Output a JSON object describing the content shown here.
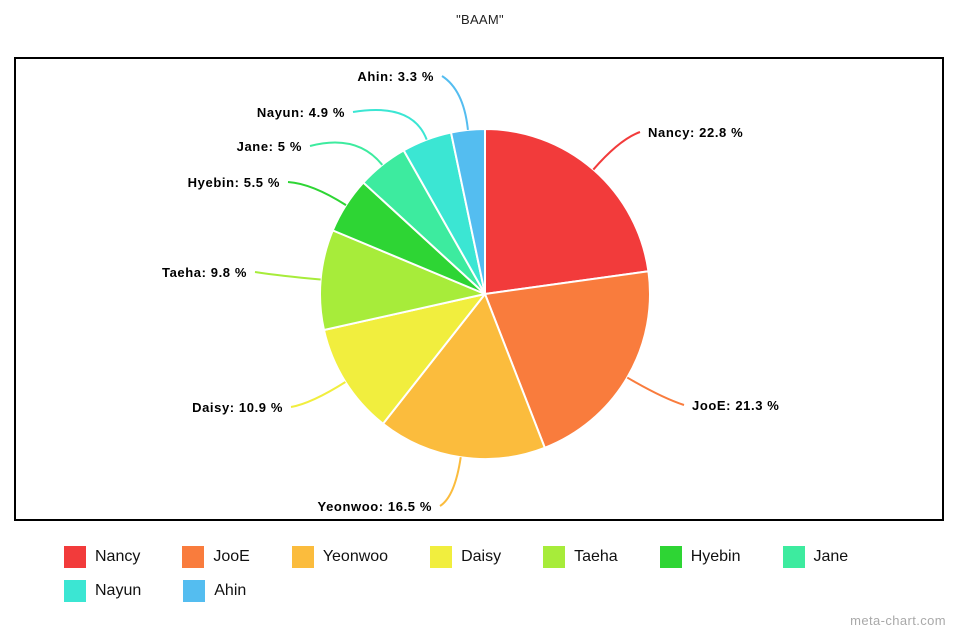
{
  "chart_data": {
    "type": "pie",
    "title": "\"BAAM\"",
    "legend_position": "bottom",
    "slices": [
      {
        "label": "Nancy",
        "value": 22.8,
        "display": "22.8 %",
        "color": "#f23b3b"
      },
      {
        "label": "JooE",
        "value": 21.3,
        "display": "21.3 %",
        "color": "#f97c3d"
      },
      {
        "label": "Yeonwoo",
        "value": 16.5,
        "display": "16.5 %",
        "color": "#fbbc3d"
      },
      {
        "label": "Daisy",
        "value": 10.9,
        "display": "10.9 %",
        "color": "#f1ee3e"
      },
      {
        "label": "Taeha",
        "value": 9.8,
        "display": "9.8 %",
        "color": "#a7ec3a"
      },
      {
        "label": "Hyebin",
        "value": 5.5,
        "display": "5.5 %",
        "color": "#2ed534"
      },
      {
        "label": "Jane",
        "value": 5,
        "display": "5 %",
        "color": "#3deb9f"
      },
      {
        "label": "Nayun",
        "value": 4.9,
        "display": "4.9 %",
        "color": "#3be6d3"
      },
      {
        "label": "Ahin",
        "value": 3.3,
        "display": "3.3 %",
        "color": "#54bdf0"
      }
    ]
  },
  "watermark": "meta-chart.com"
}
